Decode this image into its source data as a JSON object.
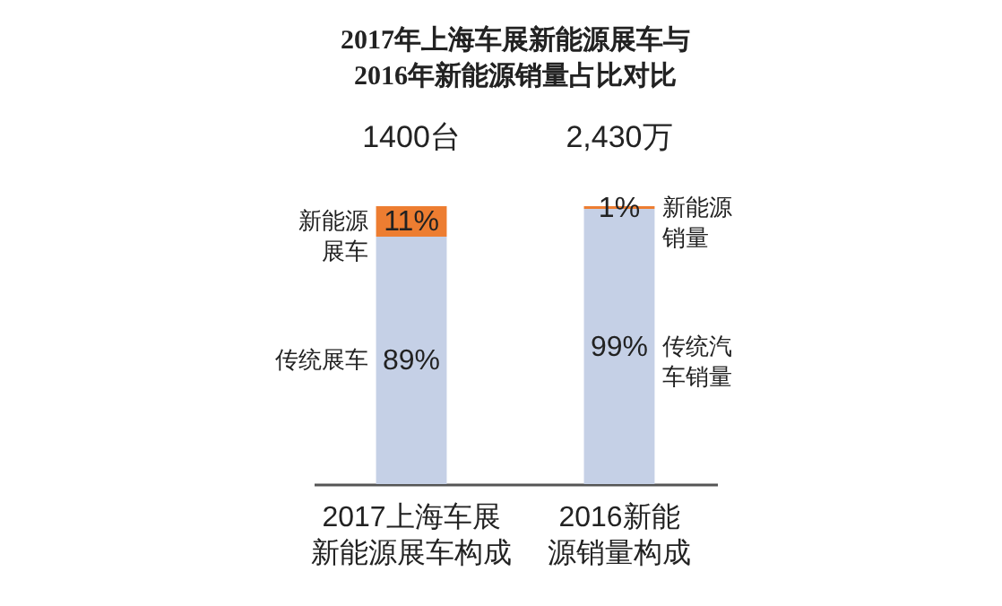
{
  "chart_data": {
    "type": "bar",
    "title": "2017年上海车展新能源展车与2016年新能源销量占比对比",
    "categories": [
      "2017上海车展新能源展车构成",
      "2016新能源销量构成"
    ],
    "stacked": true,
    "series": [
      {
        "color": "#c5d0e6",
        "values": [
          89,
          99
        ],
        "value_labels": [
          "89%",
          "99%"
        ]
      },
      {
        "color": "#ed7d31",
        "values": [
          11,
          1
        ],
        "value_labels": [
          "11%",
          "1%"
        ]
      }
    ],
    "annotations": [
      {
        "text": "1400台",
        "x": "2017上海车展新能源展车构成",
        "y": 100
      },
      {
        "text": "2,430万",
        "x": "2016新能源销量构成",
        "y": 100
      },
      "新能源展车",
      "传统展车",
      "新能源销量",
      "传统汽车销量"
    ]
  }
}
